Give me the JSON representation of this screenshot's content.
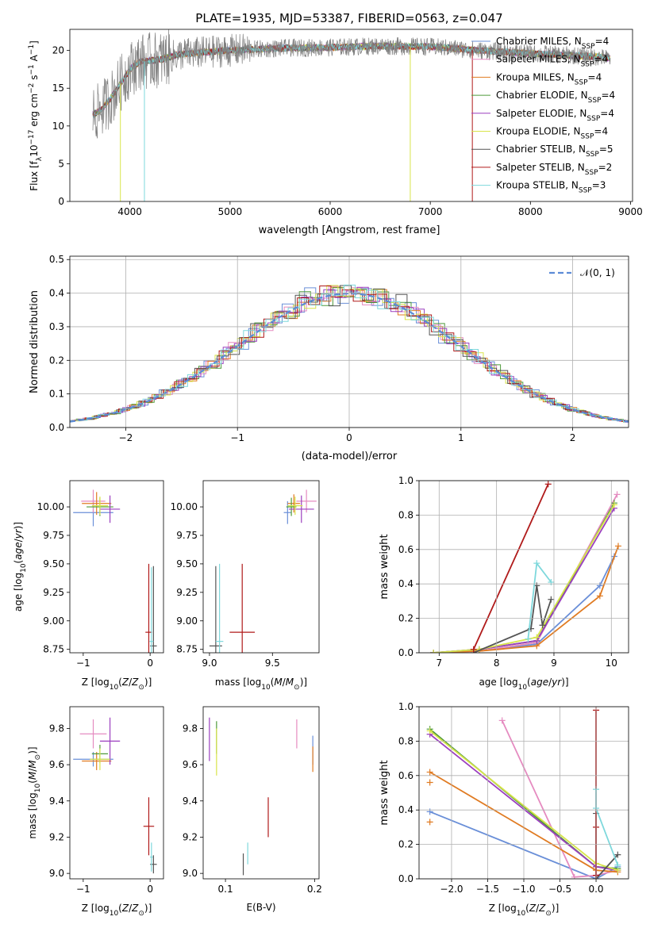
{
  "colors": {
    "Chabrier MILES": "#6a8fd8",
    "Salpeter MILES": "#e58bc0",
    "Kroupa MILES": "#e07b22",
    "Chabrier ELODIE": "#4f9a3b",
    "Salpeter ELODIE": "#9b3fbf",
    "Kroupa ELODIE": "#d8e44a",
    "Chabrier STELIB": "#555555",
    "Salpeter STELIB": "#b01a1a",
    "Kroupa STELIB": "#7ed8dc",
    "data": "#808080",
    "normal": "#5b8bd6"
  },
  "chart_data": [
    {
      "type": "line",
      "title": "PLATE=1935, MJD=53387, FIBERID=0563, z=0.047",
      "xlabel": "wavelength [Angstrom, rest frame]",
      "ylabel": "Flux [f_λ10^-17 erg cm^-2 s^-1 A^-1]",
      "xlim": [
        3400,
        9020
      ],
      "ylim": [
        0,
        22.8
      ],
      "xticks": [
        "4000",
        "5000",
        "6000",
        "7000",
        "8000",
        "9000"
      ],
      "yticks": [
        "0",
        "5",
        "10",
        "15",
        "20"
      ],
      "legend_position": "top-right",
      "legend": [
        {
          "name": "Chabrier MILES",
          "nssp": "4"
        },
        {
          "name": "Salpeter MILES",
          "nssp": "4"
        },
        {
          "name": "Kroupa MILES",
          "nssp": "4"
        },
        {
          "name": "Chabrier ELODIE",
          "nssp": "4"
        },
        {
          "name": "Salpeter ELODIE",
          "nssp": "4"
        },
        {
          "name": "Kroupa ELODIE",
          "nssp": "4"
        },
        {
          "name": "Chabrier STELIB",
          "nssp": "5"
        },
        {
          "name": "Salpeter STELIB",
          "nssp": "2"
        },
        {
          "name": "Kroupa STELIB",
          "nssp": "3"
        }
      ],
      "spectrum_profile": {
        "wavelength": [
          3630,
          3700,
          3800,
          3900,
          4000,
          4100,
          4300,
          4500,
          5000,
          5500,
          6000,
          6500,
          7000,
          7500,
          8000,
          8500,
          8800
        ],
        "flux": [
          11.5,
          12.0,
          13.5,
          15.5,
          17.5,
          18.5,
          18.8,
          19.5,
          20.0,
          20.3,
          20.4,
          20.6,
          20.5,
          20.0,
          19.6,
          19.3,
          19.0
        ]
      },
      "model_dropouts": [
        {
          "series": "Kroupa ELODIE",
          "wavelength": 3905
        },
        {
          "series": "Kroupa STELIB",
          "wavelength": 4145
        },
        {
          "series": "Kroupa ELODIE",
          "wavelength": 6800
        },
        {
          "series": "Salpeter STELIB",
          "wavelength": 7420
        }
      ]
    },
    {
      "type": "line",
      "xlabel": "(data-model)/error",
      "ylabel": "Normed distribution",
      "xlim": [
        -2.5,
        2.5
      ],
      "ylim": [
        0,
        0.51
      ],
      "xticks": [
        "−2",
        "−1",
        "0",
        "1",
        "2"
      ],
      "yticks": [
        "0.0",
        "0.1",
        "0.2",
        "0.3",
        "0.4",
        "0.5"
      ],
      "grid": true,
      "legend_position": "top-right",
      "legend_label": "𝒩(0, 1)",
      "bin_width": 0.1,
      "histogram_amplitude_deviation": [
        0.05,
        -0.03,
        0.02,
        0.06,
        -0.04,
        0.01,
        -0.06,
        0.03,
        0.08,
        -0.02,
        0.04,
        -0.05,
        0.07,
        -0.01,
        0.02,
        -0.07,
        0.05,
        0.0,
        -0.03,
        0.06,
        -0.04,
        0.09,
        -0.02,
        0.03,
        -0.06,
        0.01,
        0.04,
        -0.05,
        0.02,
        -0.01,
        0.07,
        -0.03,
        0.05,
        -0.08,
        0.02,
        0.0,
        -0.04,
        0.06,
        -0.02,
        0.03,
        -0.05,
        0.08,
        0.01,
        -0.06,
        0.04,
        -0.02,
        0.03,
        -0.04,
        0.05,
        -0.01
      ]
    },
    {
      "type": "scatter",
      "xlabel": "Z [log10(Z/Z⊙)]",
      "ylabel": "age  [log10(age/yr)]",
      "xlim": [
        -1.2,
        0.2
      ],
      "ylim": [
        8.72,
        10.23
      ],
      "xticks": [
        "−1",
        "0"
      ],
      "yticks": [
        "8.75",
        "9.00",
        "9.25",
        "9.50",
        "9.75",
        "10.00"
      ],
      "points": [
        {
          "series": "Chabrier MILES",
          "x": -0.85,
          "y": 9.95,
          "xerr": 0.3,
          "yerr": 0.12
        },
        {
          "series": "Salpeter MILES",
          "x": -0.85,
          "y": 10.05,
          "xerr": 0.18,
          "yerr": 0.1
        },
        {
          "series": "Kroupa MILES",
          "x": -0.8,
          "y": 10.03,
          "xerr": 0.22,
          "yerr": 0.1
        },
        {
          "series": "Chabrier ELODIE",
          "x": -0.75,
          "y": 10.0,
          "xerr": 0.2,
          "yerr": 0.08
        },
        {
          "series": "Salpeter ELODIE",
          "x": -0.6,
          "y": 9.98,
          "xerr": 0.15,
          "yerr": 0.12
        },
        {
          "series": "Kroupa ELODIE",
          "x": -0.75,
          "y": 10.01,
          "xerr": 0.12,
          "yerr": 0.08
        },
        {
          "series": "Chabrier STELIB",
          "x": 0.05,
          "y": 8.78,
          "xerr": 0.05,
          "yerr": 0.7
        },
        {
          "series": "Salpeter STELIB",
          "x": -0.02,
          "y": 8.9,
          "xerr": 0.05,
          "yerr": 0.6
        },
        {
          "series": "Kroupa STELIB",
          "x": 0.02,
          "y": 8.82,
          "xerr": 0.03,
          "yerr": 0.65
        }
      ]
    },
    {
      "type": "scatter",
      "xlabel": "mass [log10(M/M⊙)]",
      "ylabel": "",
      "xlim": [
        8.95,
        9.87
      ],
      "ylim": [
        8.72,
        10.23
      ],
      "xticks": [
        "9.0",
        "9.5"
      ],
      "yticks": [
        "8.75",
        "9.00",
        "9.25",
        "9.50",
        "9.75",
        "10.00"
      ],
      "points": [
        {
          "series": "Chabrier MILES",
          "x": 9.62,
          "y": 9.95,
          "xerr": 0.03,
          "yerr": 0.1
        },
        {
          "series": "Salpeter MILES",
          "x": 9.77,
          "y": 10.05,
          "xerr": 0.08,
          "yerr": 0.1
        },
        {
          "series": "Kroupa MILES",
          "x": 9.67,
          "y": 10.03,
          "xerr": 0.05,
          "yerr": 0.08
        },
        {
          "series": "Chabrier ELODIE",
          "x": 9.65,
          "y": 10.0,
          "xerr": 0.04,
          "yerr": 0.08
        },
        {
          "series": "Salpeter ELODIE",
          "x": 9.73,
          "y": 9.98,
          "xerr": 0.1,
          "yerr": 0.12
        },
        {
          "series": "Kroupa ELODIE",
          "x": 9.68,
          "y": 10.01,
          "xerr": 0.06,
          "yerr": 0.08
        },
        {
          "series": "Chabrier STELIB",
          "x": 9.05,
          "y": 8.78,
          "xerr": 0.05,
          "yerr": 0.7
        },
        {
          "series": "Salpeter STELIB",
          "x": 9.26,
          "y": 8.9,
          "xerr": 0.1,
          "yerr": 0.6
        },
        {
          "series": "Kroupa STELIB",
          "x": 9.08,
          "y": 8.82,
          "xerr": 0.03,
          "yerr": 0.68
        }
      ]
    },
    {
      "type": "line",
      "xlabel": "age  [log10(age/yr)]",
      "ylabel": "mass weight",
      "xlim": [
        6.65,
        10.3
      ],
      "ylim": [
        0,
        1.0
      ],
      "xticks": [
        "7",
        "8",
        "9",
        "10"
      ],
      "yticks": [
        "0.0",
        "0.2",
        "0.4",
        "0.6",
        "0.8",
        "1.0"
      ],
      "grid": true,
      "series": [
        {
          "series": "Chabrier MILES",
          "x": [
            6.9,
            7.7,
            8.7,
            9.8,
            10.05
          ],
          "y": [
            0.0,
            0.01,
            0.05,
            0.39,
            0.56
          ]
        },
        {
          "series": "Salpeter MILES",
          "x": [
            6.9,
            7.7,
            8.7,
            10.1
          ],
          "y": [
            0.0,
            0.01,
            0.06,
            0.92
          ]
        },
        {
          "series": "Kroupa MILES",
          "x": [
            6.9,
            7.7,
            8.7,
            9.8,
            10.12
          ],
          "y": [
            0.0,
            0.01,
            0.04,
            0.33,
            0.62
          ]
        },
        {
          "series": "Chabrier ELODIE",
          "x": [
            6.9,
            7.7,
            8.7,
            10.05
          ],
          "y": [
            0.0,
            0.02,
            0.07,
            0.87
          ]
        },
        {
          "series": "Salpeter ELODIE",
          "x": [
            6.9,
            7.7,
            8.7,
            10.05
          ],
          "y": [
            0.0,
            0.02,
            0.07,
            0.84
          ]
        },
        {
          "series": "Kroupa ELODIE",
          "x": [
            6.9,
            7.7,
            8.7,
            10.05
          ],
          "y": [
            0.0,
            0.02,
            0.09,
            0.86
          ]
        },
        {
          "series": "Chabrier STELIB",
          "x": [
            7.6,
            8.6,
            8.7,
            8.8,
            8.95
          ],
          "y": [
            0.0,
            0.14,
            0.39,
            0.16,
            0.31
          ]
        },
        {
          "series": "Salpeter STELIB",
          "x": [
            7.6,
            8.9
          ],
          "y": [
            0.02,
            0.98
          ]
        },
        {
          "series": "Kroupa STELIB",
          "x": [
            8.55,
            8.7,
            8.95
          ],
          "y": [
            0.08,
            0.52,
            0.41
          ]
        }
      ]
    },
    {
      "type": "scatter",
      "xlabel": "Z [log10(Z/Z⊙)]",
      "ylabel": "mass [log10(M/M⊙)]",
      "xlim": [
        -1.2,
        0.2
      ],
      "ylim": [
        8.97,
        9.92
      ],
      "xticks": [
        "−1",
        "0"
      ],
      "yticks": [
        "9.0",
        "9.2",
        "9.4",
        "9.6",
        "9.8"
      ],
      "points": [
        {
          "series": "Chabrier MILES",
          "x": -0.85,
          "y": 9.63,
          "xerr": 0.3,
          "yerr": 0.04
        },
        {
          "series": "Salpeter MILES",
          "x": -0.85,
          "y": 9.77,
          "xerr": 0.2,
          "yerr": 0.08
        },
        {
          "series": "Kroupa MILES",
          "x": -0.8,
          "y": 9.62,
          "xerr": 0.22,
          "yerr": 0.05
        },
        {
          "series": "Chabrier ELODIE",
          "x": -0.75,
          "y": 9.66,
          "xerr": 0.12,
          "yerr": 0.05
        },
        {
          "series": "Salpeter ELODIE",
          "x": -0.6,
          "y": 9.73,
          "xerr": 0.15,
          "yerr": 0.13
        },
        {
          "series": "Kroupa ELODIE",
          "x": -0.75,
          "y": 9.63,
          "xerr": 0.15,
          "yerr": 0.06
        },
        {
          "series": "Chabrier STELIB",
          "x": 0.05,
          "y": 9.05,
          "xerr": 0.05,
          "yerr": 0.05
        },
        {
          "series": "Salpeter STELIB",
          "x": -0.02,
          "y": 9.26,
          "xerr": 0.08,
          "yerr": 0.16
        },
        {
          "series": "Kroupa STELIB",
          "x": 0.02,
          "y": 9.09,
          "xerr": 0.02,
          "yerr": 0.08
        }
      ]
    },
    {
      "type": "scatter",
      "xlabel": "E(B-V)",
      "ylabel": "",
      "xlim": [
        0.075,
        0.205
      ],
      "ylim": [
        8.97,
        9.92
      ],
      "xticks": [
        "0.1",
        "0.2"
      ],
      "yticks": [
        "9.0",
        "9.2",
        "9.4",
        "9.6",
        "9.8"
      ],
      "points": [
        {
          "series": "Chabrier MILES",
          "x": 0.198,
          "y": 9.68,
          "yerr": 0.08
        },
        {
          "series": "Salpeter MILES",
          "x": 0.18,
          "y": 9.77,
          "yerr": 0.08
        },
        {
          "series": "Kroupa MILES",
          "x": 0.198,
          "y": 9.63,
          "yerr": 0.07
        },
        {
          "series": "Chabrier ELODIE",
          "x": 0.09,
          "y": 9.75,
          "yerr": 0.09
        },
        {
          "series": "Salpeter ELODIE",
          "x": 0.082,
          "y": 9.74,
          "yerr": 0.12
        },
        {
          "series": "Kroupa ELODIE",
          "x": 0.09,
          "y": 9.67,
          "yerr": 0.13
        },
        {
          "series": "Chabrier STELIB",
          "x": 0.12,
          "y": 9.05,
          "yerr": 0.06
        },
        {
          "series": "Salpeter STELIB",
          "x": 0.148,
          "y": 9.31,
          "yerr": 0.11
        },
        {
          "series": "Kroupa STELIB",
          "x": 0.125,
          "y": 9.11,
          "yerr": 0.06
        }
      ]
    },
    {
      "type": "line",
      "xlabel": "Z [log10(Z/Z⊙)]",
      "ylabel": "mass weight",
      "xlim": [
        -2.45,
        0.45
      ],
      "ylim": [
        0,
        1.0
      ],
      "xticks": [
        "−2.0",
        "−1.5",
        "−1.0",
        "−0.5",
        "0.0"
      ],
      "yticks": [
        "0.0",
        "0.2",
        "0.4",
        "0.6",
        "0.8",
        "1.0"
      ],
      "grid": true,
      "series": [
        {
          "series": "Chabrier MILES",
          "x": [
            -2.3,
            0.0,
            0.3
          ],
          "y": [
            0.39,
            0.0,
            0.07
          ]
        },
        {
          "series": "Salpeter MILES",
          "x": [
            -1.3,
            -0.3,
            0.0,
            0.3
          ],
          "y": [
            0.92,
            0.01,
            0.02,
            0.05
          ]
        },
        {
          "series": "Kroupa MILES",
          "x": [
            -2.3,
            0.0,
            0.3
          ],
          "y": [
            0.62,
            0.05,
            0.04
          ]
        },
        {
          "series": "Chabrier ELODIE",
          "x": [
            -2.3,
            0.0,
            0.3
          ],
          "y": [
            0.87,
            0.07,
            0.06
          ]
        },
        {
          "series": "Salpeter ELODIE",
          "x": [
            -2.3,
            0.0,
            0.3
          ],
          "y": [
            0.84,
            0.07,
            0.05
          ]
        },
        {
          "series": "Kroupa ELODIE",
          "x": [
            -2.3,
            0.0,
            0.3
          ],
          "y": [
            0.86,
            0.09,
            0.05
          ]
        },
        {
          "series": "Chabrier STELIB",
          "x": [
            0.0,
            0.0,
            0.3
          ],
          "y": [
            0.38,
            0.0,
            0.14
          ]
        },
        {
          "series": "Salpeter STELIB",
          "x": [
            0.0,
            0.0
          ],
          "y": [
            0.98,
            0.02
          ]
        },
        {
          "series": "Kroupa STELIB",
          "x": [
            0.0,
            0.0,
            0.3
          ],
          "y": [
            0.52,
            0.41,
            0.08
          ]
        }
      ],
      "extra_markers": [
        {
          "series": "Kroupa MILES",
          "x": -2.3,
          "y": 0.56
        },
        {
          "series": "Kroupa MILES",
          "x": -2.3,
          "y": 0.33
        },
        {
          "series": "Salpeter STELIB",
          "x": 0.0,
          "y": 0.3
        }
      ]
    }
  ]
}
